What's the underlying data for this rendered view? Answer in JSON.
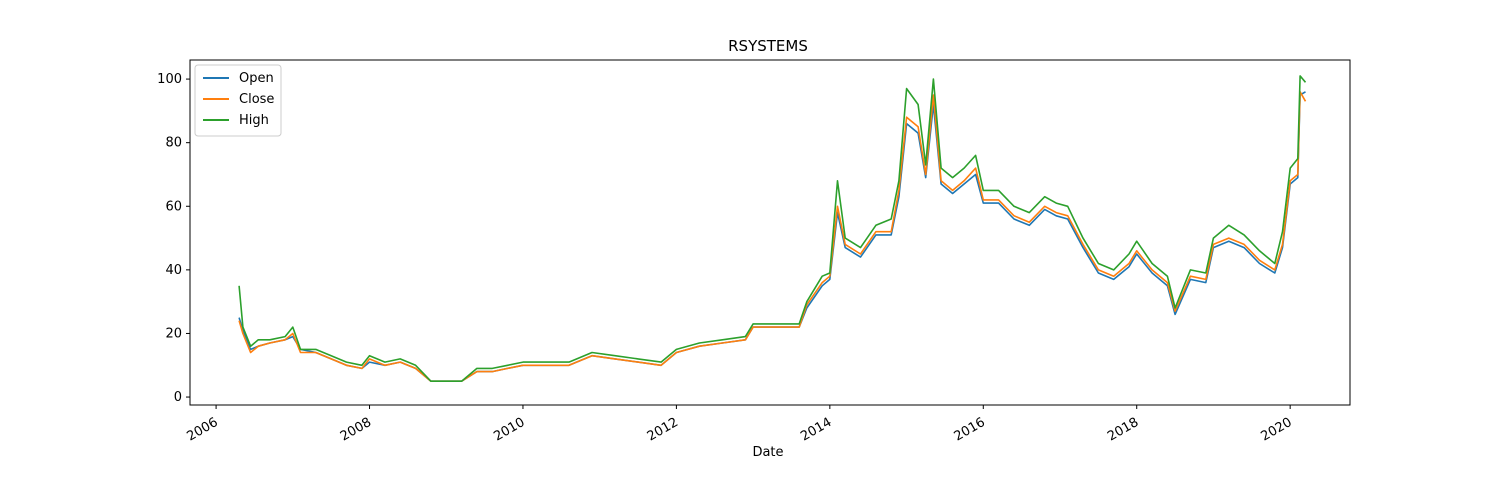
{
  "chart_data": {
    "type": "line",
    "title": "RSYSTEMS",
    "x_label": "Date",
    "x": [
      2006.3,
      2006.35,
      2006.45,
      2006.55,
      2006.7,
      2006.9,
      2007.0,
      2007.1,
      2007.3,
      2007.5,
      2007.7,
      2007.9,
      2008.0,
      2008.2,
      2008.4,
      2008.6,
      2008.8,
      2009.0,
      2009.2,
      2009.4,
      2009.6,
      2009.8,
      2010.0,
      2010.3,
      2010.6,
      2010.9,
      2011.2,
      2011.5,
      2011.8,
      2012.0,
      2012.3,
      2012.6,
      2012.9,
      2013.0,
      2013.3,
      2013.6,
      2013.7,
      2013.9,
      2014.0,
      2014.1,
      2014.2,
      2014.4,
      2014.6,
      2014.8,
      2014.9,
      2015.0,
      2015.15,
      2015.25,
      2015.35,
      2015.45,
      2015.6,
      2015.75,
      2015.9,
      2016.0,
      2016.2,
      2016.4,
      2016.6,
      2016.8,
      2016.95,
      2017.1,
      2017.3,
      2017.5,
      2017.7,
      2017.9,
      2018.0,
      2018.2,
      2018.4,
      2018.5,
      2018.7,
      2018.9,
      2019.0,
      2019.2,
      2019.4,
      2019.6,
      2019.8,
      2019.9,
      2020.0,
      2020.1,
      2020.13,
      2020.2
    ],
    "series": [
      {
        "name": "Open",
        "color": "#1f77b4",
        "values": [
          25,
          21,
          15,
          16,
          17,
          18,
          19,
          15,
          14,
          12,
          10,
          9,
          11,
          10,
          11,
          9,
          5,
          5,
          5,
          8,
          8,
          9,
          10,
          10,
          10,
          13,
          12,
          11,
          10,
          14,
          16,
          17,
          18,
          22,
          22,
          22,
          28,
          35,
          37,
          58,
          47,
          44,
          51,
          51,
          63,
          86,
          83,
          69,
          92,
          67,
          64,
          67,
          70,
          61,
          61,
          56,
          54,
          59,
          57,
          56,
          47,
          39,
          37,
          41,
          45,
          39,
          35,
          26,
          37,
          36,
          47,
          49,
          47,
          42,
          39,
          47,
          67,
          69,
          95,
          96
        ]
      },
      {
        "name": "Close",
        "color": "#ff7f0e",
        "values": [
          24,
          20,
          14,
          16,
          17,
          18,
          20,
          14,
          14,
          12,
          10,
          9,
          12,
          10,
          11,
          9,
          5,
          5,
          5,
          8,
          8,
          9,
          10,
          10,
          10,
          13,
          12,
          11,
          10,
          14,
          16,
          17,
          18,
          22,
          22,
          22,
          29,
          36,
          38,
          60,
          48,
          45,
          52,
          52,
          65,
          88,
          85,
          70,
          95,
          68,
          65,
          68,
          72,
          62,
          62,
          57,
          55,
          60,
          58,
          57,
          48,
          40,
          38,
          42,
          46,
          40,
          36,
          27,
          38,
          37,
          48,
          50,
          48,
          43,
          40,
          48,
          68,
          70,
          96,
          93
        ]
      },
      {
        "name": "High",
        "color": "#2ca02c",
        "values": [
          35,
          22,
          16,
          18,
          18,
          19,
          22,
          15,
          15,
          13,
          11,
          10,
          13,
          11,
          12,
          10,
          5,
          5,
          5,
          9,
          9,
          10,
          11,
          11,
          11,
          14,
          13,
          12,
          11,
          15,
          17,
          18,
          19,
          23,
          23,
          23,
          30,
          38,
          39,
          68,
          50,
          47,
          54,
          56,
          68,
          97,
          92,
          73,
          100,
          72,
          69,
          72,
          76,
          65,
          65,
          60,
          58,
          63,
          61,
          60,
          50,
          42,
          40,
          45,
          49,
          42,
          38,
          28,
          40,
          39,
          50,
          54,
          51,
          46,
          42,
          52,
          72,
          75,
          101,
          99
        ]
      }
    ],
    "xlim": [
      2005.66,
      2020.78
    ],
    "xticks": [
      2006,
      2008,
      2010,
      2012,
      2014,
      2016,
      2018,
      2020
    ],
    "ylim": [
      -2.5,
      106
    ],
    "yticks": [
      0,
      20,
      40,
      60,
      80,
      100
    ],
    "legend": "upper left",
    "grid": false
  }
}
